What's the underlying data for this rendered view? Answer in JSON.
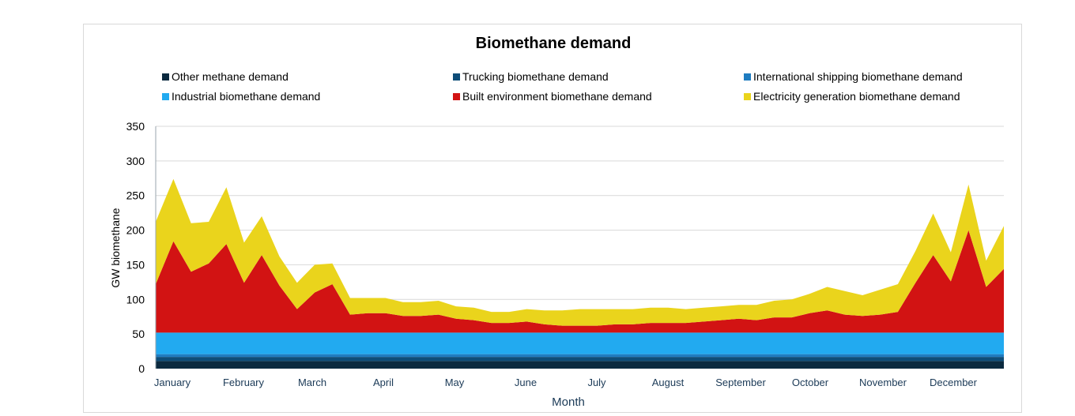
{
  "chart_data": {
    "type": "area",
    "title": "Biomethane demand",
    "xlabel": "Month",
    "ylabel": "GW biomethane",
    "ylim": [
      0,
      350
    ],
    "yticks": [
      0,
      50,
      100,
      150,
      200,
      250,
      300,
      350
    ],
    "grid": true,
    "legend_position": "top",
    "months": [
      "January",
      "February",
      "March",
      "April",
      "May",
      "June",
      "July",
      "August",
      "September",
      "October",
      "November",
      "December"
    ],
    "x": [
      "Jan 1",
      "Jan 8",
      "Jan 15",
      "Jan 22",
      "Feb 1",
      "Feb 8",
      "Feb 15",
      "Feb 22",
      "Mar 1",
      "Mar 8",
      "Mar 15",
      "Mar 22",
      "Apr 1",
      "Apr 8",
      "Apr 15",
      "Apr 22",
      "May 1",
      "May 8",
      "May 15",
      "May 22",
      "Jun 1",
      "Jun 8",
      "Jun 15",
      "Jun 22",
      "Jul 1",
      "Jul 8",
      "Jul 15",
      "Jul 22",
      "Aug 1",
      "Aug 8",
      "Aug 15",
      "Aug 22",
      "Sep 1",
      "Sep 8",
      "Sep 15",
      "Sep 22",
      "Oct 1",
      "Oct 8",
      "Oct 15",
      "Oct 22",
      "Nov 1",
      "Nov 8",
      "Nov 15",
      "Nov 22",
      "Dec 1",
      "Dec 8",
      "Dec 15",
      "Dec 22",
      "Dec 31"
    ],
    "series": [
      {
        "name": "Other methane demand",
        "color": "#0b2a3f",
        "values": [
          11,
          11,
          11,
          11,
          11,
          11,
          11,
          11,
          11,
          11,
          11,
          11,
          11,
          11,
          11,
          11,
          11,
          11,
          11,
          11,
          11,
          11,
          11,
          11,
          11,
          11,
          11,
          11,
          11,
          11,
          11,
          11,
          11,
          11,
          11,
          11,
          11,
          11,
          11,
          11,
          11,
          11,
          11,
          11,
          11,
          11,
          11,
          11,
          11
        ]
      },
      {
        "name": "Trucking biomethane demand",
        "color": "#0e4d78",
        "values": [
          6,
          6,
          6,
          6,
          6,
          6,
          6,
          6,
          6,
          6,
          6,
          6,
          6,
          6,
          6,
          6,
          6,
          6,
          6,
          6,
          6,
          6,
          6,
          6,
          6,
          6,
          6,
          6,
          6,
          6,
          6,
          6,
          6,
          6,
          6,
          6,
          6,
          6,
          6,
          6,
          6,
          6,
          6,
          6,
          6,
          6,
          6,
          6,
          6
        ]
      },
      {
        "name": "International shipping biomethane demand",
        "color": "#1f7cc0",
        "values": [
          4,
          4,
          4,
          4,
          4,
          4,
          4,
          4,
          4,
          4,
          4,
          4,
          4,
          4,
          4,
          4,
          4,
          4,
          4,
          4,
          4,
          4,
          4,
          4,
          4,
          4,
          4,
          4,
          4,
          4,
          4,
          4,
          4,
          4,
          4,
          4,
          4,
          4,
          4,
          4,
          4,
          4,
          4,
          4,
          4,
          4,
          4,
          4,
          4
        ]
      },
      {
        "name": "Industrial biomethane demand",
        "color": "#22aaf0",
        "values": [
          31,
          31,
          31,
          31,
          31,
          31,
          31,
          31,
          31,
          31,
          31,
          31,
          31,
          31,
          31,
          31,
          31,
          31,
          31,
          31,
          31,
          31,
          31,
          31,
          31,
          31,
          31,
          31,
          31,
          31,
          31,
          31,
          31,
          31,
          31,
          31,
          31,
          31,
          31,
          31,
          31,
          31,
          31,
          31,
          31,
          31,
          31,
          31,
          31
        ]
      },
      {
        "name": "Built environment biomethane demand",
        "color": "#d21313",
        "values": [
          70,
          132,
          88,
          100,
          128,
          72,
          112,
          68,
          34,
          58,
          70,
          26,
          28,
          28,
          24,
          24,
          26,
          20,
          18,
          14,
          14,
          16,
          12,
          10,
          10,
          10,
          12,
          12,
          14,
          14,
          14,
          16,
          18,
          20,
          18,
          22,
          22,
          28,
          32,
          26,
          24,
          26,
          30,
          72,
          112,
          74,
          148,
          66,
          92
        ]
      },
      {
        "name": "Electricity generation biomethane demand",
        "color": "#ead41c",
        "values": [
          90,
          90,
          70,
          60,
          82,
          58,
          56,
          42,
          38,
          40,
          30,
          24,
          22,
          22,
          20,
          20,
          20,
          18,
          18,
          16,
          16,
          18,
          20,
          22,
          24,
          24,
          22,
          22,
          22,
          22,
          20,
          20,
          20,
          20,
          22,
          24,
          26,
          28,
          34,
          34,
          30,
          36,
          40,
          46,
          60,
          42,
          66,
          38,
          62
        ]
      }
    ]
  }
}
